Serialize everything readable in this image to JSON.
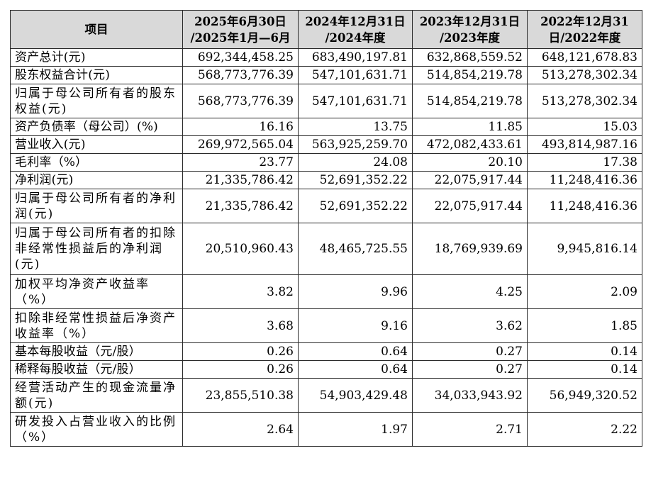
{
  "header": {
    "item": "项目",
    "col1": [
      "2025年6月30日",
      "/2025年1月—6月"
    ],
    "col2": [
      "2024年12月31日",
      "/2024年度"
    ],
    "col3": [
      "2023年12月31日",
      "/2023年度"
    ],
    "col4": [
      "2022年12月31",
      "日/2022年度"
    ]
  },
  "rows": [
    {
      "label": "资产总计(元)",
      "v": [
        "692,344,458.25",
        "683,490,197.81",
        "632,868,559.52",
        "648,121,678.83"
      ]
    },
    {
      "label": "股东权益合计(元)",
      "v": [
        "568,773,776.39",
        "547,101,631.71",
        "514,854,219.78",
        "513,278,302.34"
      ]
    },
    {
      "label": "归属于母公司所有者的股东权益(元)",
      "v": [
        "568,773,776.39",
        "547,101,631.71",
        "514,854,219.78",
        "513,278,302.34"
      ]
    },
    {
      "label": "资产负债率（母公司）(%)",
      "v": [
        "16.16",
        "13.75",
        "11.85",
        "15.03"
      ]
    },
    {
      "label": "营业收入(元)",
      "v": [
        "269,972,565.04",
        "563,925,259.70",
        "472,082,433.61",
        "493,814,987.16"
      ]
    },
    {
      "label": "毛利率（%）",
      "v": [
        "23.77",
        "24.08",
        "20.10",
        "17.38"
      ]
    },
    {
      "label": "净利润(元)",
      "v": [
        "21,335,786.42",
        "52,691,352.22",
        "22,075,917.44",
        "11,248,416.36"
      ]
    },
    {
      "label": "归属于母公司所有者的净利润(元)",
      "v": [
        "21,335,786.42",
        "52,691,352.22",
        "22,075,917.44",
        "11,248,416.36"
      ]
    },
    {
      "label": "归属于母公司所有者的扣除非经常性损益后的净利润(元)",
      "v": [
        "20,510,960.43",
        "48,465,725.55",
        "18,769,939.69",
        "9,945,816.14"
      ]
    },
    {
      "label": "加权平均净资产收益率（%）",
      "v": [
        "3.82",
        "9.96",
        "4.25",
        "2.09"
      ]
    },
    {
      "label": "扣除非经常性损益后净资产收益率（%）",
      "v": [
        "3.68",
        "9.16",
        "3.62",
        "1.85"
      ]
    },
    {
      "label": "基本每股收益（元/股）",
      "v": [
        "0.26",
        "0.64",
        "0.27",
        "0.14"
      ]
    },
    {
      "label": "稀释每股收益（元/股）",
      "v": [
        "0.26",
        "0.64",
        "0.27",
        "0.14"
      ]
    },
    {
      "label": "经营活动产生的现金流量净额(元)",
      "v": [
        "23,855,510.38",
        "54,903,429.48",
        "34,033,943.92",
        "56,949,320.52"
      ]
    },
    {
      "label": "研发投入占营业收入的比例（%）",
      "v": [
        "2.64",
        "1.97",
        "2.71",
        "2.22"
      ]
    }
  ]
}
